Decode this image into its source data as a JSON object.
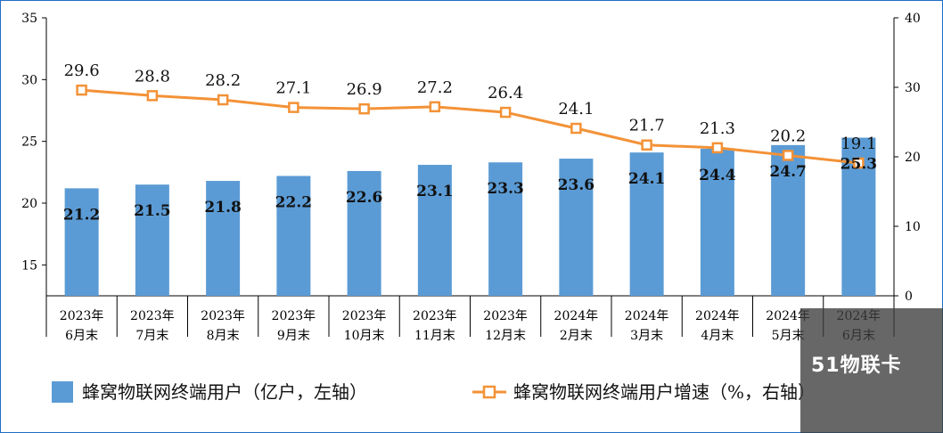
{
  "chart_data": {
    "type": "bar",
    "categories": [
      [
        "2023年",
        "6月末"
      ],
      [
        "2023年",
        "7月末"
      ],
      [
        "2023年",
        "8月末"
      ],
      [
        "2023年",
        "9月末"
      ],
      [
        "2023年",
        "10月末"
      ],
      [
        "2023年",
        "11月末"
      ],
      [
        "2023年",
        "12月末"
      ],
      [
        "2024年",
        "2月末"
      ],
      [
        "2024年",
        "3月末"
      ],
      [
        "2024年",
        "4月末"
      ],
      [
        "2024年",
        "5月末"
      ],
      [
        "2024年",
        "6月末"
      ]
    ],
    "series": [
      {
        "name": "蜂窝物联网终端用户（亿户，左轴）",
        "type": "bar",
        "axis": "left",
        "values": [
          21.2,
          21.5,
          21.8,
          22.2,
          22.6,
          23.1,
          23.3,
          23.6,
          24.1,
          24.4,
          24.7,
          25.3
        ],
        "labels": [
          "21.2",
          "21.5",
          "21.8",
          "22.2",
          "22.6",
          "23.1",
          "23.3",
          "23.6",
          "24.1",
          "24.4",
          "24.7",
          "25.3"
        ]
      },
      {
        "name": "蜂窝物联网终端用户增速（%，右轴）",
        "type": "line",
        "axis": "right",
        "values": [
          29.6,
          28.8,
          28.2,
          27.1,
          26.9,
          27.2,
          26.4,
          24.1,
          21.7,
          21.3,
          20.2,
          19.1
        ],
        "labels": [
          "29.6",
          "28.8",
          "28.2",
          "27.1",
          "26.9",
          "27.2",
          "26.4",
          "24.1",
          "21.7",
          "21.3",
          "20.2",
          "19.1"
        ]
      }
    ],
    "y_left": {
      "min": 12.5,
      "max": 35,
      "ticks": [
        "15",
        "20",
        "25",
        "30",
        "35"
      ]
    },
    "y_right": {
      "min": 0,
      "max": 40,
      "ticks": [
        "0",
        "10",
        "20",
        "30",
        "40"
      ]
    },
    "grid": false,
    "legend_position": "bottom",
    "colors": {
      "bar": "#5b9bd5",
      "line": "#f39237",
      "frame": "#1f6fc5"
    }
  },
  "watermark": {
    "logo_text": "51物联卡"
  }
}
